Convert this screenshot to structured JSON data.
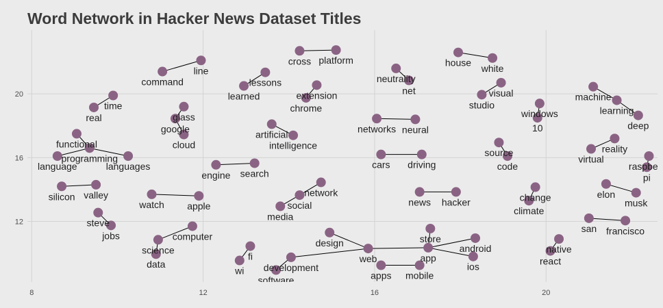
{
  "chart_data": {
    "type": "scatter",
    "title": "Word Network in Hacker News Dataset Titles",
    "xlabel": "",
    "ylabel": "",
    "xlim": [
      7.9,
      22.6
    ],
    "ylim": [
      8.2,
      24.0
    ],
    "x_ticks": [
      8,
      12,
      16,
      20
    ],
    "y_ticks": [
      12,
      16,
      20
    ],
    "grid": true,
    "nodes": [
      {
        "word": "line",
        "x": 11.95,
        "y": 22.1,
        "label_dx": 0,
        "label_dy": 20
      },
      {
        "word": "command",
        "x": 11.05,
        "y": 21.4,
        "label_dx": 0,
        "label_dy": 20
      },
      {
        "word": "cross",
        "x": 14.25,
        "y": 22.7,
        "label_dx": 0,
        "label_dy": 20
      },
      {
        "word": "platform",
        "x": 15.1,
        "y": 22.75,
        "label_dx": 0,
        "label_dy": 20
      },
      {
        "word": "lessons",
        "x": 13.45,
        "y": 21.35,
        "label_dx": 0,
        "label_dy": 20
      },
      {
        "word": "learned",
        "x": 12.95,
        "y": 20.5,
        "label_dx": 0,
        "label_dy": 20
      },
      {
        "word": "extension",
        "x": 14.65,
        "y": 20.55,
        "label_dx": 0,
        "label_dy": 20
      },
      {
        "word": "chrome",
        "x": 14.4,
        "y": 19.75,
        "label_dx": 0,
        "label_dy": 20
      },
      {
        "word": "neutrality",
        "x": 16.5,
        "y": 21.6,
        "label_dx": 0,
        "label_dy": 20
      },
      {
        "word": "net",
        "x": 16.8,
        "y": 20.85,
        "label_dx": 0,
        "label_dy": 20
      },
      {
        "word": "house",
        "x": 17.95,
        "y": 22.6,
        "label_dx": 0,
        "label_dy": 20
      },
      {
        "word": "white",
        "x": 18.75,
        "y": 22.25,
        "label_dx": 0,
        "label_dy": 20
      },
      {
        "word": "visual",
        "x": 18.95,
        "y": 20.7,
        "label_dx": 0,
        "label_dy": 20
      },
      {
        "word": "studio",
        "x": 18.5,
        "y": 19.95,
        "label_dx": 0,
        "label_dy": 20
      },
      {
        "word": "machine",
        "x": 21.1,
        "y": 20.45,
        "label_dx": 0,
        "label_dy": 20
      },
      {
        "word": "learning",
        "x": 21.65,
        "y": 19.6,
        "label_dx": 0,
        "label_dy": 20
      },
      {
        "word": "deep",
        "x": 22.15,
        "y": 18.65,
        "label_dx": 0,
        "label_dy": 20
      },
      {
        "word": "time",
        "x": 9.9,
        "y": 19.9,
        "label_dx": 0,
        "label_dy": 20
      },
      {
        "word": "real",
        "x": 9.45,
        "y": 19.15,
        "label_dx": 0,
        "label_dy": 20
      },
      {
        "word": "glass",
        "x": 11.55,
        "y": 19.2,
        "label_dx": 0,
        "label_dy": 20
      },
      {
        "word": "google",
        "x": 11.35,
        "y": 18.45,
        "label_dx": 0,
        "label_dy": 20
      },
      {
        "word": "cloud",
        "x": 11.55,
        "y": 17.45,
        "label_dx": 0,
        "label_dy": 20
      },
      {
        "word": "windows",
        "x": 19.85,
        "y": 19.4,
        "label_dx": 0,
        "label_dy": 20
      },
      {
        "word": "10",
        "x": 19.8,
        "y": 18.5,
        "label_dx": 0,
        "label_dy": 20
      },
      {
        "word": "artificial",
        "x": 13.6,
        "y": 18.1,
        "label_dx": 0,
        "label_dy": 20
      },
      {
        "word": "intelligence",
        "x": 14.1,
        "y": 17.4,
        "label_dx": 0,
        "label_dy": 20
      },
      {
        "word": "networks",
        "x": 16.05,
        "y": 18.45,
        "label_dx": 0,
        "label_dy": 20
      },
      {
        "word": "neural",
        "x": 16.95,
        "y": 18.4,
        "label_dx": 0,
        "label_dy": 20
      },
      {
        "word": "functional",
        "x": 9.05,
        "y": 17.5,
        "label_dx": 0,
        "label_dy": 20
      },
      {
        "word": "programming",
        "x": 9.35,
        "y": 16.6,
        "label_dx": 0,
        "label_dy": 20
      },
      {
        "word": "language",
        "x": 8.6,
        "y": 16.1,
        "label_dx": 0,
        "label_dy": 20
      },
      {
        "word": "languages",
        "x": 10.25,
        "y": 16.1,
        "label_dx": 0,
        "label_dy": 20
      },
      {
        "word": "source",
        "x": 18.9,
        "y": 16.95,
        "label_dx": 0,
        "label_dy": 20
      },
      {
        "word": "code",
        "x": 19.1,
        "y": 16.1,
        "label_dx": 0,
        "label_dy": 20
      },
      {
        "word": "reality",
        "x": 21.6,
        "y": 17.2,
        "label_dx": 0,
        "label_dy": 20
      },
      {
        "word": "virtual",
        "x": 21.05,
        "y": 16.55,
        "label_dx": 0,
        "label_dy": 20
      },
      {
        "word": "raspberry",
        "x": 22.4,
        "y": 16.1,
        "label_dx": 0,
        "label_dy": 20
      },
      {
        "word": "pi",
        "x": 22.35,
        "y": 15.4,
        "label_dx": 0,
        "label_dy": 20
      },
      {
        "word": "engine",
        "x": 12.3,
        "y": 15.55,
        "label_dx": 0,
        "label_dy": 20
      },
      {
        "word": "search",
        "x": 13.2,
        "y": 15.65,
        "label_dx": 0,
        "label_dy": 20
      },
      {
        "word": "cars",
        "x": 16.15,
        "y": 16.2,
        "label_dx": 0,
        "label_dy": 20
      },
      {
        "word": "driving",
        "x": 17.1,
        "y": 16.2,
        "label_dx": 0,
        "label_dy": 20
      },
      {
        "word": "silicon",
        "x": 8.7,
        "y": 14.2,
        "label_dx": 0,
        "label_dy": 20
      },
      {
        "word": "valley",
        "x": 9.5,
        "y": 14.3,
        "label_dx": 0,
        "label_dy": 20
      },
      {
        "word": "watch",
        "x": 10.8,
        "y": 13.7,
        "label_dx": 0,
        "label_dy": 20
      },
      {
        "word": "apple",
        "x": 11.9,
        "y": 13.6,
        "label_dx": 0,
        "label_dy": 20
      },
      {
        "word": "network",
        "x": 14.75,
        "y": 14.45,
        "label_dx": 0,
        "label_dy": 20
      },
      {
        "word": "social",
        "x": 14.25,
        "y": 13.65,
        "label_dx": 0,
        "label_dy": 20
      },
      {
        "word": "media",
        "x": 13.8,
        "y": 12.95,
        "label_dx": 0,
        "label_dy": 20
      },
      {
        "word": "news",
        "x": 17.05,
        "y": 13.85,
        "label_dx": 0,
        "label_dy": 20
      },
      {
        "word": "hacker",
        "x": 17.9,
        "y": 13.85,
        "label_dx": 0,
        "label_dy": 20
      },
      {
        "word": "change",
        "x": 19.75,
        "y": 14.15,
        "label_dx": 0,
        "label_dy": 20
      },
      {
        "word": "climate",
        "x": 19.6,
        "y": 13.3,
        "label_dx": 0,
        "label_dy": 20
      },
      {
        "word": "elon",
        "x": 21.4,
        "y": 14.35,
        "label_dx": 0,
        "label_dy": 20
      },
      {
        "word": "musk",
        "x": 22.1,
        "y": 13.8,
        "label_dx": 0,
        "label_dy": 20
      },
      {
        "word": "steve",
        "x": 9.55,
        "y": 12.55,
        "label_dx": 0,
        "label_dy": 20
      },
      {
        "word": "jobs",
        "x": 9.85,
        "y": 11.75,
        "label_dx": 0,
        "label_dy": 20
      },
      {
        "word": "san",
        "x": 21.0,
        "y": 12.2,
        "label_dx": 0,
        "label_dy": 20
      },
      {
        "word": "francisco",
        "x": 21.85,
        "y": 12.05,
        "label_dx": 0,
        "label_dy": 20
      },
      {
        "word": "computer",
        "x": 11.75,
        "y": 11.7,
        "label_dx": 0,
        "label_dy": 20
      },
      {
        "word": "science",
        "x": 10.95,
        "y": 10.85,
        "label_dx": 0,
        "label_dy": 20
      },
      {
        "word": "data",
        "x": 10.9,
        "y": 9.95,
        "label_dx": 0,
        "label_dy": 20
      },
      {
        "word": "fi",
        "x": 13.1,
        "y": 10.45,
        "label_dx": 0,
        "label_dy": 20
      },
      {
        "word": "wi",
        "x": 12.85,
        "y": 9.55,
        "label_dx": 0,
        "label_dy": 20
      },
      {
        "word": "design",
        "x": 14.95,
        "y": 11.3,
        "label_dx": 0,
        "label_dy": 20
      },
      {
        "word": "web",
        "x": 15.85,
        "y": 10.3,
        "label_dx": 0,
        "label_dy": 20
      },
      {
        "word": "development",
        "x": 14.05,
        "y": 9.75,
        "label_dx": 0,
        "label_dy": 20
      },
      {
        "word": "software",
        "x": 13.7,
        "y": 8.95,
        "label_dx": 0,
        "label_dy": 20
      },
      {
        "word": "apps",
        "x": 16.15,
        "y": 9.25,
        "label_dx": 0,
        "label_dy": 20
      },
      {
        "word": "mobile",
        "x": 17.05,
        "y": 9.25,
        "label_dx": 0,
        "label_dy": 20
      },
      {
        "word": "store",
        "x": 17.3,
        "y": 11.55,
        "label_dx": 0,
        "label_dy": 20
      },
      {
        "word": "app",
        "x": 17.25,
        "y": 10.35,
        "label_dx": 0,
        "label_dy": 20
      },
      {
        "word": "android",
        "x": 18.35,
        "y": 10.95,
        "label_dx": 0,
        "label_dy": 20
      },
      {
        "word": "ios",
        "x": 18.3,
        "y": 9.8,
        "label_dx": 0,
        "label_dy": 20
      },
      {
        "word": "native",
        "x": 20.3,
        "y": 10.9,
        "label_dx": 0,
        "label_dy": 20
      },
      {
        "word": "react",
        "x": 20.1,
        "y": 10.15,
        "label_dx": 0,
        "label_dy": 20
      }
    ],
    "edges": [
      [
        "command",
        "line"
      ],
      [
        "cross",
        "platform"
      ],
      [
        "learned",
        "lessons"
      ],
      [
        "chrome",
        "extension"
      ],
      [
        "net",
        "neutrality"
      ],
      [
        "white",
        "house"
      ],
      [
        "visual",
        "studio"
      ],
      [
        "machine",
        "learning"
      ],
      [
        "deep",
        "learning"
      ],
      [
        "real",
        "time"
      ],
      [
        "google",
        "glass"
      ],
      [
        "google",
        "cloud"
      ],
      [
        "windows",
        "10"
      ],
      [
        "artificial",
        "intelligence"
      ],
      [
        "neural",
        "networks"
      ],
      [
        "functional",
        "programming"
      ],
      [
        "programming",
        "language"
      ],
      [
        "programming",
        "languages"
      ],
      [
        "source",
        "code"
      ],
      [
        "virtual",
        "reality"
      ],
      [
        "raspberry",
        "pi"
      ],
      [
        "search",
        "engine"
      ],
      [
        "driving",
        "cars"
      ],
      [
        "silicon",
        "valley"
      ],
      [
        "apple",
        "watch"
      ],
      [
        "social",
        "network"
      ],
      [
        "social",
        "media"
      ],
      [
        "hacker",
        "news"
      ],
      [
        "climate",
        "change"
      ],
      [
        "elon",
        "musk"
      ],
      [
        "steve",
        "jobs"
      ],
      [
        "san",
        "francisco"
      ],
      [
        "computer",
        "science"
      ],
      [
        "data",
        "science"
      ],
      [
        "wi",
        "fi"
      ],
      [
        "web",
        "design"
      ],
      [
        "web",
        "development"
      ],
      [
        "software",
        "development"
      ],
      [
        "web",
        "app"
      ],
      [
        "mobile",
        "apps"
      ],
      [
        "app",
        "store"
      ],
      [
        "android",
        "app"
      ],
      [
        "ios",
        "app"
      ],
      [
        "react",
        "native"
      ]
    ]
  }
}
